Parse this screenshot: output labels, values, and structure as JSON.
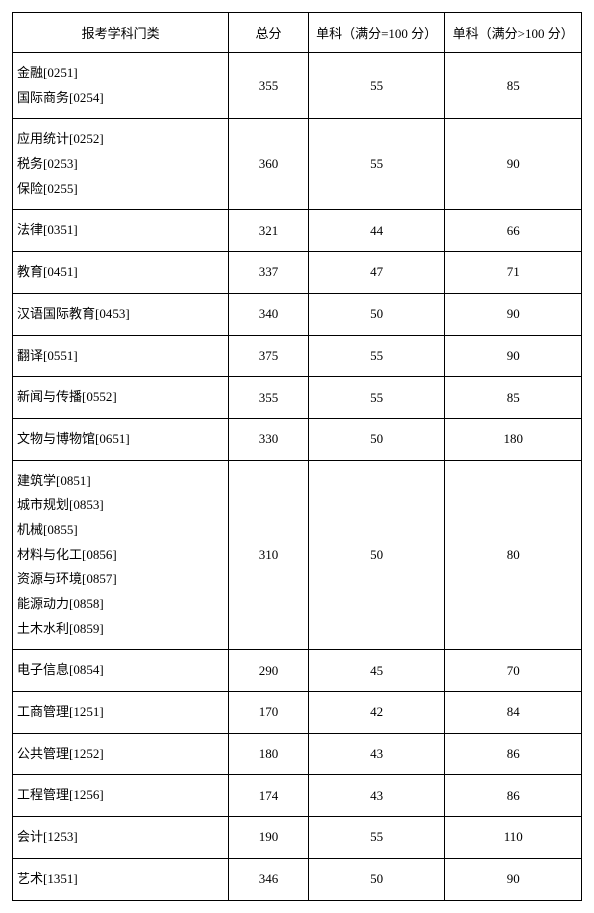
{
  "table": {
    "headers": {
      "category": "报考学科门类",
      "total": "总分",
      "sub1": "单科（满分=100 分）",
      "sub2": "单科（满分>100 分）"
    },
    "rows": [
      {
        "category": "金融[0251]\n国际商务[0254]",
        "total": "355",
        "sub1": "55",
        "sub2": "85"
      },
      {
        "category": "应用统计[0252]\n税务[0253]\n保险[0255]",
        "total": "360",
        "sub1": "55",
        "sub2": "90"
      },
      {
        "category": "法律[0351]",
        "total": "321",
        "sub1": "44",
        "sub2": "66"
      },
      {
        "category": "教育[0451]",
        "total": "337",
        "sub1": "47",
        "sub2": "71"
      },
      {
        "category": "汉语国际教育[0453]",
        "total": "340",
        "sub1": "50",
        "sub2": "90"
      },
      {
        "category": "翻译[0551]",
        "total": "375",
        "sub1": "55",
        "sub2": "90"
      },
      {
        "category": "新闻与传播[0552]",
        "total": "355",
        "sub1": "55",
        "sub2": "85"
      },
      {
        "category": "文物与博物馆[0651]",
        "total": "330",
        "sub1": "50",
        "sub2": "180"
      },
      {
        "category": "建筑学[0851]\n城市规划[0853]\n机械[0855]\n材料与化工[0856]\n资源与环境[0857]\n能源动力[0858]\n土木水利[0859]",
        "total": "310",
        "sub1": "50",
        "sub2": "80"
      },
      {
        "category": "电子信息[0854]",
        "total": "290",
        "sub1": "45",
        "sub2": "70"
      },
      {
        "category": "工商管理[1251]",
        "total": "170",
        "sub1": "42",
        "sub2": "84"
      },
      {
        "category": "公共管理[1252]",
        "total": "180",
        "sub1": "43",
        "sub2": "86"
      },
      {
        "category": "工程管理[1256]",
        "total": "174",
        "sub1": "43",
        "sub2": "86"
      },
      {
        "category": "会计[1253]",
        "total": "190",
        "sub1": "55",
        "sub2": "110"
      },
      {
        "category": "艺术[1351]",
        "total": "346",
        "sub1": "50",
        "sub2": "90"
      }
    ]
  }
}
